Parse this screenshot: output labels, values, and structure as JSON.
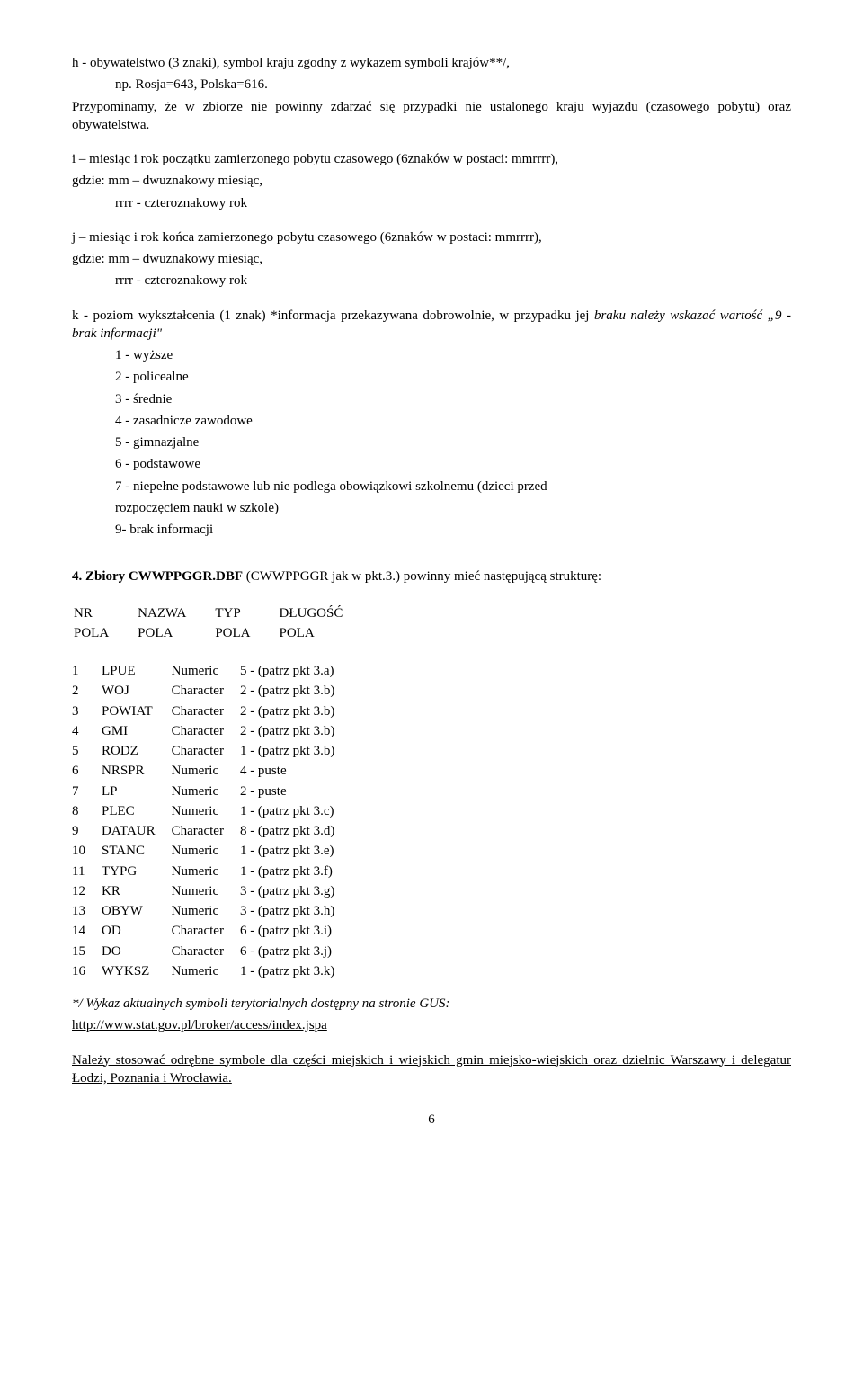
{
  "para_h": "h - obywatelstwo (3 znaki), symbol kraju zgodny z wykazem symboli krajów**/,",
  "para_h_indent": "np. Rosja=643, Polska=616.",
  "para_reminder": "Przypominamy, że w zbiorze nie powinny zdarzać się przypadki nie ustalonego kraju wyjazdu (czasowego pobytu) oraz obywatelstwa.",
  "para_i_1": "i – miesiąc i rok początku zamierzonego pobytu czasowego (6znaków w postaci: mmrrrr),",
  "para_i_2": "gdzie:  mm – dwuznakowy miesiąc,",
  "para_i_3": "rrrr - czteroznakowy rok",
  "para_j_1": "j – miesiąc i rok końca zamierzonego pobytu czasowego (6znaków w postaci: mmrrrr),",
  "para_j_2": "gdzie:  mm – dwuznakowy miesiąc,",
  "para_j_3": "rrrr - czteroznakowy rok",
  "para_k_1a": "k - poziom wykształcenia (1 znak)  *informacja przekazywana dobrowolnie, w przypadku jej ",
  "para_k_1b": "braku należy wskazać wartość „9 - brak informacji\"",
  "k_items": [
    "1 - wyższe",
    "2 - policealne",
    "3 - średnie",
    "4 - zasadnicze zawodowe",
    "5 - gimnazjalne",
    "6 - podstawowe",
    "7 - niepełne podstawowe lub nie podlega obowiązkowi szkolnemu (dzieci przed",
    "rozpoczęciem nauki w szkole)",
    "9- brak informacji"
  ],
  "section4_a": "4.  Zbiory  CWWPPGGR.DBF",
  "section4_b": "  (CWWPPGGR  jak  w  pkt.3.)  powinny  mieć  następującą strukturę:",
  "header_row1": [
    "NR",
    "NAZWA",
    "TYP",
    "DŁUGOŚĆ"
  ],
  "header_row2": [
    "POLA",
    "POLA",
    "POLA",
    "POLA"
  ],
  "rows": [
    [
      "1",
      "LPUE",
      "Numeric",
      "5 - (patrz pkt 3.a)"
    ],
    [
      "2",
      "WOJ",
      "Character",
      "2 - (patrz pkt 3.b)"
    ],
    [
      "3",
      "POWIAT",
      "Character",
      "2 - (patrz pkt 3.b)"
    ],
    [
      "4",
      "GMI",
      "Character",
      "2 - (patrz pkt 3.b)"
    ],
    [
      "5",
      "RODZ",
      "Character",
      "1 - (patrz pkt 3.b)"
    ],
    [
      "6",
      "NRSPR",
      "Numeric",
      "4 - puste"
    ],
    [
      "7",
      "LP",
      "Numeric",
      "2 - puste"
    ],
    [
      "8",
      "PLEC",
      "Numeric",
      "1 - (patrz pkt 3.c)"
    ],
    [
      "9",
      "DATAUR",
      "Character",
      "8 - (patrz pkt 3.d)"
    ],
    [
      "10",
      "STANC",
      "Numeric",
      "1 - (patrz pkt 3.e)"
    ],
    [
      "11",
      "TYPG",
      "Numeric",
      "1 - (patrz pkt 3.f)"
    ],
    [
      "12",
      "KR",
      "Numeric",
      "3 - (patrz pkt 3.g)"
    ],
    [
      "13",
      "OBYW",
      "Numeric",
      "3 - (patrz pkt 3.h)"
    ],
    [
      "14",
      "OD",
      "Character",
      "6 - (patrz pkt 3.i)"
    ],
    [
      "15",
      "DO",
      "Character",
      "6 - (patrz pkt 3.j)"
    ],
    [
      "16",
      "WYKSZ",
      "Numeric",
      "1 - (patrz pkt 3.k)"
    ]
  ],
  "footnote_1": "*/ Wykaz aktualnych symboli terytorialnych dostępny na stronie GUS:",
  "footnote_link": "http://www.stat.gov.pl/broker/access/index.jspa",
  "final_para": "Należy stosować odrębne symbole dla części miejskich i wiejskich gmin miejsko-wiejskich oraz dzielnic Warszawy i delegatur Łodzi, Poznania i Wrocławia.",
  "page_number": "6"
}
